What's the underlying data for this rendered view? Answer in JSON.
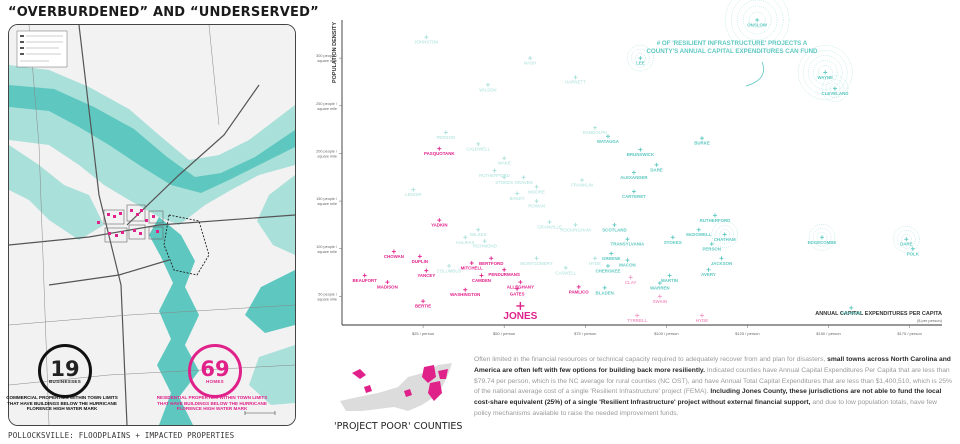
{
  "page": {
    "title": "“OVERBURDENED” AND “UNDERSERVED”",
    "caption": "POLLOCKSVILLE: FLOODPLAINS + IMPACTED PROPERTIES"
  },
  "stats": {
    "businesses": {
      "value": "19",
      "unit": "BUSINESSES",
      "desc": "COMMERCIAL PROPERTIES WITHIN TOWN LIMITS THAT HAVE BUILDINGS BELOW THE HURRICANE FLORENCE HIGH WATER MARK"
    },
    "homes": {
      "value": "69",
      "unit": "HOMES",
      "desc": "RESIDENTIAL PROPERTIES WITHIN TOWN LIMITS THAT HAVE BUILDINGS BELOW THE HURRICANE FLORENCE HIGH WATER MARK"
    }
  },
  "colors": {
    "teal": "#5ec8c0",
    "teal_light": "#a9e0da",
    "magenta": "#e0218a",
    "pink": "#f29ac6",
    "grey": "#9a9a9a",
    "map_bg": "#f2f2f2",
    "road": "#555555"
  },
  "project_poor": {
    "label": "'PROJECT POOR' COUNTIES"
  },
  "paragraph": {
    "p1": "Often limited in the financial resources or technical capacity required to adequately recover from and plan for disasters, ",
    "b1": "small towns across North Carolina and America are often left with few options for building back more resiliently.",
    "p2": " Indicated counties have Annual Capital Expenditures Per Capita that are less than $79.74 per person, which is the NC average for rural counties (NC OST), and have Annual Total Capital Expenditures that are less than $1,400,510, which is 25% of the national average cost of a single 'Resilient Infrastructure' project (FEMA). ",
    "b2": "Including Jones County, these jurisdictions are not able to fund the local cost-share equivalent (25%) of a single 'Resilient Infrastructure' project without external financial support,",
    "p3": " and due to low population totals, have few policy mechanisms available to raise the needed improvement funds."
  },
  "chart_data": {
    "type": "scatter",
    "ylabel": "POPULATION DENSITY",
    "xlabel": "ANNUAL CAPITAL EXPENDITURES PER CAPITA",
    "xlabel_sub": "($ per person)",
    "x_ticks": [
      "$25 / person",
      "$50 / person",
      "$75 / person",
      "$100 / person",
      "$125 / person",
      "$150 / person",
      "$175 / person",
      "$200 / person"
    ],
    "y_ticks": [
      "50 people / square mile",
      "100 people / square mile",
      "150 people / square mile",
      "200 people / square mile",
      "250 people / square mile",
      "300 people / square mile"
    ],
    "annotation": "# OF 'RESILIENT INFRASTRUCTURE' PROJECTS A COUNTY'S ANNUAL CAPITAL EXPENDITURES CAN FUND",
    "points": [
      {
        "name": "JOHNSTON",
        "x": 26,
        "y": 322,
        "cat": "light",
        "r": 0
      },
      {
        "name": "WILSON",
        "x": 45,
        "y": 272,
        "cat": "light",
        "r": 0
      },
      {
        "name": "HARNETT",
        "x": 72,
        "y": 280,
        "cat": "light",
        "r": 0
      },
      {
        "name": "LEE",
        "x": 92,
        "y": 300,
        "cat": "teal",
        "r": 1
      },
      {
        "name": "ONSLOW",
        "x": 128,
        "y": 340,
        "cat": "teal",
        "r": 3
      },
      {
        "name": "WAYNE",
        "x": 149,
        "y": 285,
        "cat": "teal",
        "r": 2
      },
      {
        "name": "CLEVELAND",
        "x": 152,
        "y": 268,
        "cat": "teal",
        "r": 1
      },
      {
        "name": "NASH",
        "x": 58,
        "y": 300,
        "cat": "light",
        "r": 0
      },
      {
        "name": "RANDOLPH",
        "x": 78,
        "y": 227,
        "cat": "light",
        "r": 0
      },
      {
        "name": "WATAUGA",
        "x": 82,
        "y": 218,
        "cat": "teal",
        "r": 0
      },
      {
        "name": "BRUNSWICK",
        "x": 92,
        "y": 204,
        "cat": "teal",
        "r": 0
      },
      {
        "name": "BURKE",
        "x": 111,
        "y": 216,
        "cat": "teal",
        "r": 0
      },
      {
        "name": "DARE",
        "x": 97,
        "y": 188,
        "cat": "teal",
        "r": 0
      },
      {
        "name": "ALEXANDER",
        "x": 90,
        "y": 180,
        "cat": "teal",
        "r": 0
      },
      {
        "name": "FRANKLIN",
        "x": 74,
        "y": 172,
        "cat": "light",
        "r": 0
      },
      {
        "name": "CARTERET",
        "x": 90,
        "y": 160,
        "cat": "teal",
        "r": 0
      },
      {
        "name": "PERSON",
        "x": 32,
        "y": 222,
        "cat": "light",
        "r": 0
      },
      {
        "name": "CALDWELL",
        "x": 42,
        "y": 210,
        "cat": "light",
        "r": 0
      },
      {
        "name": "PASQUOTANK",
        "x": 30,
        "y": 205,
        "cat": "magenta",
        "r": 0
      },
      {
        "name": "WAKE",
        "x": 50,
        "y": 195,
        "cat": "light",
        "r": 0
      },
      {
        "name": "RUTHERFORD",
        "x": 47,
        "y": 182,
        "cat": "light",
        "r": 0
      },
      {
        "name": "STOKES",
        "x": 50,
        "y": 175,
        "cat": "light",
        "r": 0
      },
      {
        "name": "GRAVEN",
        "x": 56,
        "y": 175,
        "cat": "light",
        "r": 0
      },
      {
        "name": "MOORE",
        "x": 60,
        "y": 165,
        "cat": "light",
        "r": 0
      },
      {
        "name": "BANDY",
        "x": 54,
        "y": 158,
        "cat": "light",
        "r": 0
      },
      {
        "name": "LENOIR",
        "x": 22,
        "y": 162,
        "cat": "light",
        "r": 0
      },
      {
        "name": "ROWAN",
        "x": 60,
        "y": 150,
        "cat": "light",
        "r": 0
      },
      {
        "name": "GRANVILLE",
        "x": 64,
        "y": 128,
        "cat": "light",
        "r": 0
      },
      {
        "name": "ROCKINGHAM",
        "x": 72,
        "y": 125,
        "cat": "light",
        "r": 0
      },
      {
        "name": "SCOTLAND",
        "x": 84,
        "y": 125,
        "cat": "teal",
        "r": 0
      },
      {
        "name": "TRANSYLVANIA",
        "x": 88,
        "y": 110,
        "cat": "teal",
        "r": 0
      },
      {
        "name": "RUTHERFORD",
        "x": 115,
        "y": 135,
        "cat": "teal",
        "r": 0
      },
      {
        "name": "McDOWELL",
        "x": 110,
        "y": 120,
        "cat": "teal",
        "r": 0
      },
      {
        "name": "STOKES",
        "x": 102,
        "y": 112,
        "cat": "teal",
        "r": 0
      },
      {
        "name": "CHATHAM",
        "x": 118,
        "y": 115,
        "cat": "teal",
        "r": 1
      },
      {
        "name": "PERSON",
        "x": 114,
        "y": 105,
        "cat": "teal",
        "r": 0
      },
      {
        "name": "JACKSON",
        "x": 117,
        "y": 90,
        "cat": "teal",
        "r": 0
      },
      {
        "name": "AVERY",
        "x": 113,
        "y": 78,
        "cat": "teal",
        "r": 0
      },
      {
        "name": "EDGECOMBE",
        "x": 148,
        "y": 112,
        "cat": "teal",
        "r": 1
      },
      {
        "name": "DARE",
        "x": 174,
        "y": 110,
        "cat": "teal",
        "r": 1
      },
      {
        "name": "POLK",
        "x": 176,
        "y": 100,
        "cat": "teal",
        "r": 0
      },
      {
        "name": "GRAHAM",
        "x": 157,
        "y": 38,
        "cat": "teal",
        "r": 0
      },
      {
        "name": "YADKIN",
        "x": 30,
        "y": 130,
        "cat": "magenta",
        "r": 0
      },
      {
        "name": "HALIFAX",
        "x": 38,
        "y": 112,
        "cat": "light",
        "r": 0
      },
      {
        "name": "WILKES",
        "x": 42,
        "y": 120,
        "cat": "light",
        "r": 0
      },
      {
        "name": "RICHMOND",
        "x": 44,
        "y": 108,
        "cat": "light",
        "r": 0
      },
      {
        "name": "CHOWAN",
        "x": 16,
        "y": 97,
        "cat": "magenta",
        "r": 0
      },
      {
        "name": "DUPLIN",
        "x": 24,
        "y": 92,
        "cat": "magenta",
        "r": 0
      },
      {
        "name": "COLUMBUS",
        "x": 33,
        "y": 82,
        "cat": "light",
        "r": 0
      },
      {
        "name": "BERTFORD",
        "x": 46,
        "y": 90,
        "cat": "magenta",
        "r": 0
      },
      {
        "name": "MITCHELL",
        "x": 40,
        "y": 85,
        "cat": "magenta",
        "r": 0
      },
      {
        "name": "PENDURMANS",
        "x": 50,
        "y": 78,
        "cat": "magenta",
        "r": 0
      },
      {
        "name": "MONTGOMERY",
        "x": 60,
        "y": 90,
        "cat": "light",
        "r": 0
      },
      {
        "name": "CASWELL",
        "x": 69,
        "y": 80,
        "cat": "light",
        "r": 0
      },
      {
        "name": "BEAUFORT",
        "x": 7,
        "y": 72,
        "cat": "magenta",
        "r": 0
      },
      {
        "name": "MADISON",
        "x": 14,
        "y": 65,
        "cat": "magenta",
        "r": 0
      },
      {
        "name": "YANCEY",
        "x": 26,
        "y": 77,
        "cat": "magenta",
        "r": 0
      },
      {
        "name": "CAMDEN",
        "x": 43,
        "y": 72,
        "cat": "magenta",
        "r": 0
      },
      {
        "name": "ALLEGHANY",
        "x": 55,
        "y": 65,
        "cat": "magenta",
        "r": 0
      },
      {
        "name": "WASHINGTON",
        "x": 38,
        "y": 57,
        "cat": "magenta",
        "r": 0
      },
      {
        "name": "GATES",
        "x": 54,
        "y": 58,
        "cat": "magenta",
        "r": 0
      },
      {
        "name": "BERTIE",
        "x": 25,
        "y": 45,
        "cat": "magenta",
        "r": 0
      },
      {
        "name": "JONES",
        "x": 55,
        "y": 40,
        "cat": "magenta",
        "r": 0
      },
      {
        "name": "PAMLICO",
        "x": 73,
        "y": 60,
        "cat": "magenta",
        "r": 0
      },
      {
        "name": "BLADEN",
        "x": 81,
        "y": 59,
        "cat": "teal",
        "r": 0
      },
      {
        "name": "GREENE",
        "x": 83,
        "y": 95,
        "cat": "teal",
        "r": 0
      },
      {
        "name": "MACON",
        "x": 88,
        "y": 88,
        "cat": "teal",
        "r": 0
      },
      {
        "name": "CHEROKEE",
        "x": 82,
        "y": 82,
        "cat": "teal",
        "r": 0
      },
      {
        "name": "HYDE",
        "x": 78,
        "y": 90,
        "cat": "light",
        "r": 0
      },
      {
        "name": "CLAY",
        "x": 89,
        "y": 70,
        "cat": "pink",
        "r": 0
      },
      {
        "name": "MARTIN",
        "x": 101,
        "y": 72,
        "cat": "teal",
        "r": 0
      },
      {
        "name": "WARREN",
        "x": 98,
        "y": 64,
        "cat": "teal",
        "r": 0
      },
      {
        "name": "SWAIN",
        "x": 98,
        "y": 50,
        "cat": "pink",
        "r": 0
      },
      {
        "name": "TYRRELL",
        "x": 91,
        "y": 30,
        "cat": "pink",
        "r": 0
      },
      {
        "name": "HYDE",
        "x": 111,
        "y": 30,
        "cat": "pink",
        "r": 0
      }
    ]
  }
}
